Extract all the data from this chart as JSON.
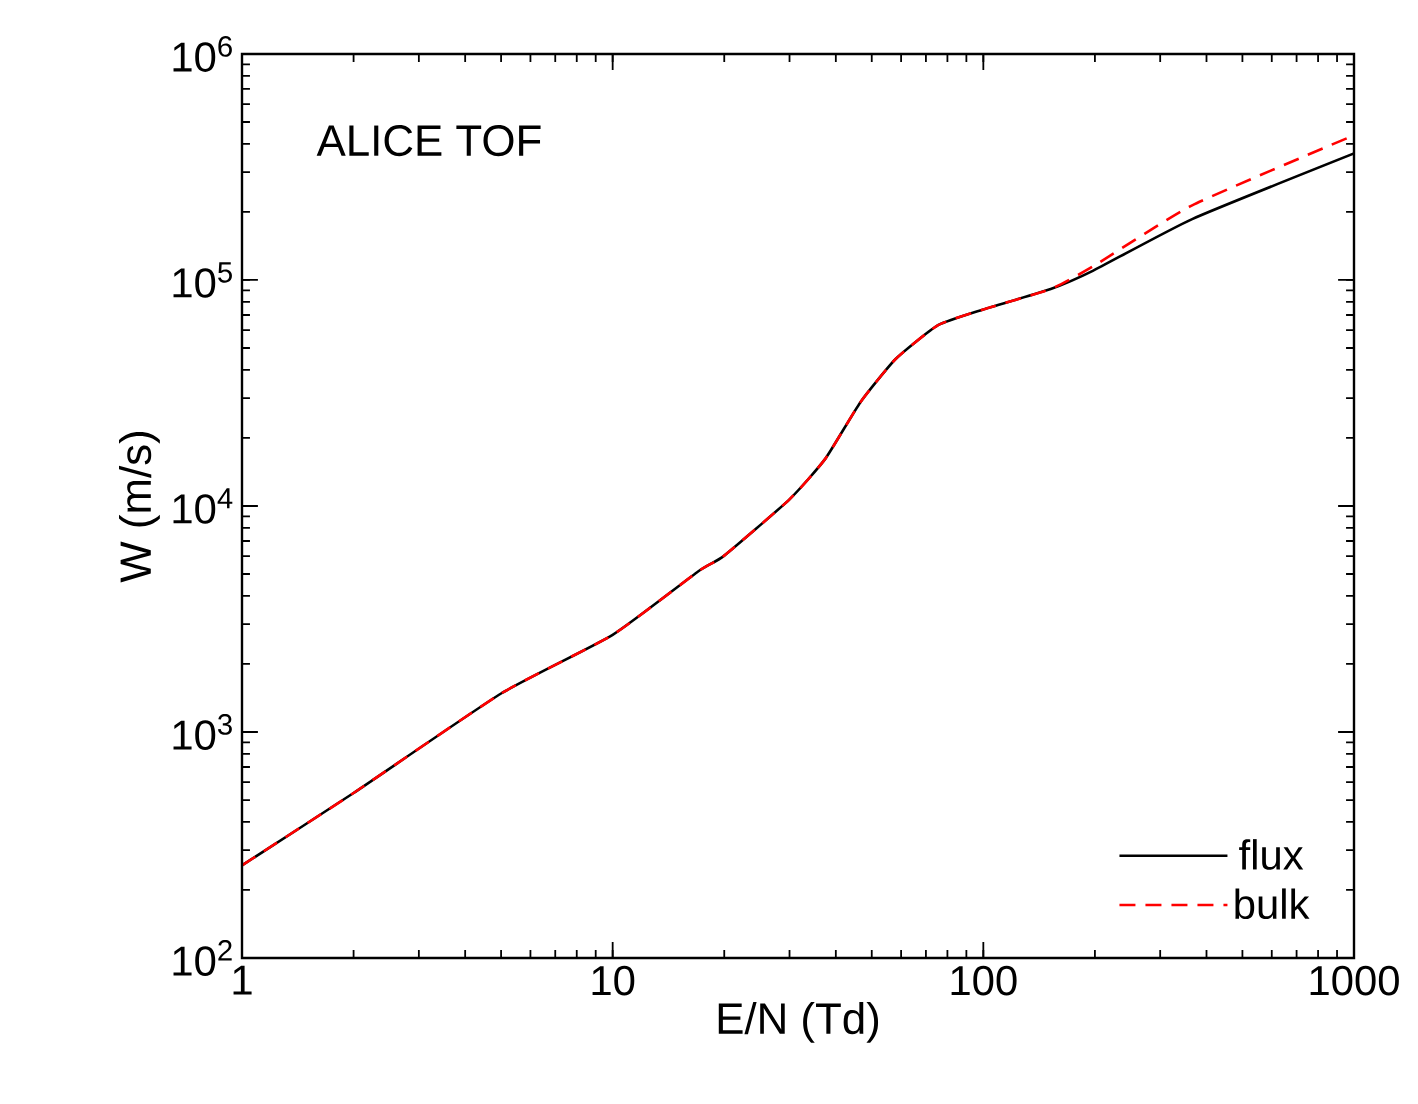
{
  "chart_data": {
    "type": "line",
    "xlabel": "E/N (Td)",
    "ylabel": "W (m/s)",
    "annotations": [
      "ALICE TOF"
    ],
    "log": "xy",
    "grid": false,
    "legend": "bottom right",
    "x": [
      1,
      2,
      5,
      10,
      17,
      20,
      30,
      37.5,
      46.6,
      58,
      75.5,
      100,
      152,
      198,
      366,
      1000
    ],
    "xlim": [
      1,
      1000
    ],
    "ylim": [
      100,
      1000000
    ],
    "xticks": [
      1,
      10,
      100,
      1000
    ],
    "yticks": [
      {
        "value": 100,
        "label": "10$^{2}$"
      },
      {
        "value": 1000,
        "label": "10$^{3}$"
      },
      {
        "value": 10000,
        "label": "10$^{4}$"
      },
      {
        "value": 100000,
        "label": "10$^{5}$"
      },
      {
        "value": 1000000,
        "label": "10$^{6}$"
      }
    ],
    "series": [
      {
        "name": "flux",
        "color": "#000000",
        "line_style": "solid",
        "values": [
          257,
          537,
          1480,
          2690,
          5130,
          6030,
          10700,
          16200,
          28800,
          44700,
          63100,
          74100,
          91200,
          110000,
          186000,
          363000
        ]
      },
      {
        "name": "bulk",
        "color": "#ff0000",
        "line_style": "dashed",
        "values": [
          257,
          537,
          1480,
          2690,
          5130,
          6030,
          10700,
          16200,
          28800,
          44700,
          63100,
          74100,
          91200,
          115000,
          214000,
          437000
        ]
      }
    ]
  }
}
